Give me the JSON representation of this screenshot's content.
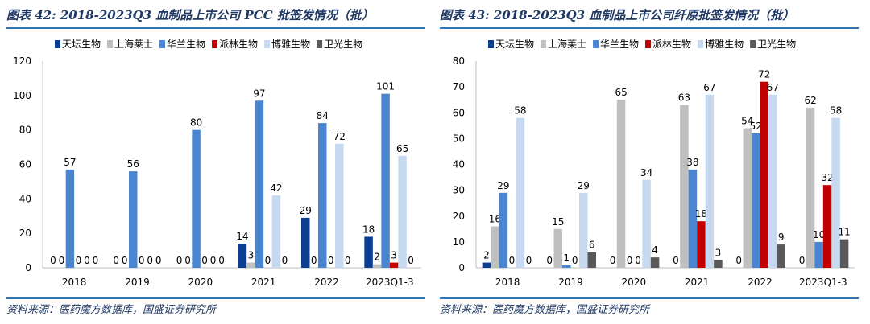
{
  "charts": [
    {
      "title": "图表 42:  2018-2023Q3 血制品上市公司 PCC 批签发情况（批）",
      "source": "资料来源：医药魔方数据库，国盛证券研究所",
      "chart_data": {
        "type": "bar",
        "categories": [
          "2018",
          "2019",
          "2020",
          "2021",
          "2022",
          "2023Q1-3"
        ],
        "series": [
          {
            "name": "天坛生物",
            "color": "#0b3d91",
            "values": [
              0,
              0,
              0,
              14,
              29,
              18
            ]
          },
          {
            "name": "上海莱士",
            "color": "#bfbfbf",
            "values": [
              0,
              0,
              0,
              3,
              0,
              2
            ]
          },
          {
            "name": "华兰生物",
            "color": "#4a86d0",
            "values": [
              57,
              56,
              80,
              97,
              84,
              101
            ]
          },
          {
            "name": "派林生物",
            "color": "#c00000",
            "values": [
              0,
              0,
              0,
              0,
              0,
              3
            ]
          },
          {
            "name": "博雅生物",
            "color": "#c6d9f1",
            "values": [
              0,
              0,
              0,
              42,
              72,
              65
            ]
          },
          {
            "name": "卫光生物",
            "color": "#595959",
            "values": [
              0,
              0,
              0,
              0,
              0,
              0
            ]
          }
        ],
        "ylim": [
          0,
          120
        ],
        "yticks": [
          0,
          20,
          40,
          60,
          80,
          100,
          120
        ],
        "legend": "top",
        "grid": false
      }
    },
    {
      "title": "图表 43:  2018-2023Q3 血制品上市公司纤原批签发情况（批）",
      "source": "资料来源：医药魔方数据库，国盛证券研究所",
      "chart_data": {
        "type": "bar",
        "categories": [
          "2018",
          "2019",
          "2020",
          "2021",
          "2022",
          "2023Q1-3"
        ],
        "series": [
          {
            "name": "天坛生物",
            "color": "#0b3d91",
            "values": [
              2,
              0,
              0,
              0,
              0,
              0
            ]
          },
          {
            "name": "上海莱士",
            "color": "#bfbfbf",
            "values": [
              16,
              15,
              65,
              63,
              54,
              62
            ]
          },
          {
            "name": "华兰生物",
            "color": "#4a86d0",
            "values": [
              29,
              1,
              0,
              38,
              52,
              10
            ]
          },
          {
            "name": "派林生物",
            "color": "#c00000",
            "values": [
              0,
              0,
              0,
              18,
              72,
              32
            ]
          },
          {
            "name": "博雅生物",
            "color": "#c6d9f1",
            "values": [
              58,
              29,
              34,
              67,
              67,
              58
            ]
          },
          {
            "name": "卫光生物",
            "color": "#595959",
            "values": [
              0,
              6,
              4,
              3,
              9,
              11
            ]
          }
        ],
        "ylim": [
          0,
          80
        ],
        "yticks": [
          0,
          10,
          20,
          30,
          40,
          50,
          60,
          70,
          80
        ],
        "legend": "top",
        "grid": false
      }
    }
  ]
}
